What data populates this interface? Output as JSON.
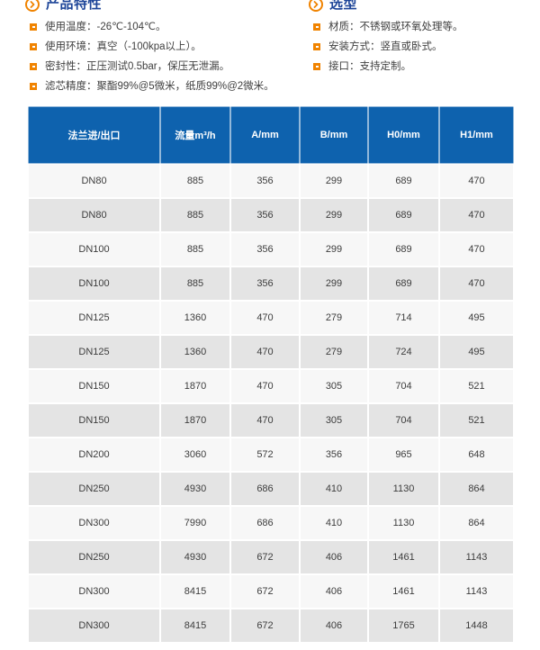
{
  "colors": {
    "accent_orange": "#f08300",
    "title_navy": "#1c4498",
    "table_header_blue": "#0e62ae",
    "row_light": "#f7f7f7",
    "row_gray": "#e4e4e4",
    "body_text": "#404040"
  },
  "icons": {
    "section_marker": "chevron-circle-icon",
    "list_bullet": "square-bullet-icon"
  },
  "features": {
    "title": "产品特性",
    "items": [
      "使用温度：-26℃-104℃。",
      "使用环境：真空（-100kpa以上）。",
      "密封性：正压测试0.5bar，保压无泄漏。",
      "滤芯精度：聚酯99%@5微米，纸质99%@2微米。"
    ]
  },
  "selection": {
    "title": "选型",
    "items": [
      "材质：不锈钢或环氧处理等。",
      "安装方式：竖直或卧式。",
      "接口：支持定制。"
    ]
  },
  "table": {
    "headers": [
      "法兰进/出口",
      "流量m³/h",
      "A/mm",
      "B/mm",
      "H0/mm",
      "H1/mm"
    ],
    "rows": [
      [
        "DN80",
        "885",
        "356",
        "299",
        "689",
        "470"
      ],
      [
        "DN80",
        "885",
        "356",
        "299",
        "689",
        "470"
      ],
      [
        "DN100",
        "885",
        "356",
        "299",
        "689",
        "470"
      ],
      [
        "DN100",
        "885",
        "356",
        "299",
        "689",
        "470"
      ],
      [
        "DN125",
        "1360",
        "470",
        "279",
        "714",
        "495"
      ],
      [
        "DN125",
        "1360",
        "470",
        "279",
        "724",
        "495"
      ],
      [
        "DN150",
        "1870",
        "470",
        "305",
        "704",
        "521"
      ],
      [
        "DN150",
        "1870",
        "470",
        "305",
        "704",
        "521"
      ],
      [
        "DN200",
        "3060",
        "572",
        "356",
        "965",
        "648"
      ],
      [
        "DN250",
        "4930",
        "686",
        "410",
        "1130",
        "864"
      ],
      [
        "DN300",
        "7990",
        "686",
        "410",
        "1130",
        "864"
      ],
      [
        "DN250",
        "4930",
        "672",
        "406",
        "1461",
        "1143"
      ],
      [
        "DN300",
        "8415",
        "672",
        "406",
        "1461",
        "1143"
      ],
      [
        "DN300",
        "8415",
        "672",
        "406",
        "1765",
        "1448"
      ]
    ]
  }
}
